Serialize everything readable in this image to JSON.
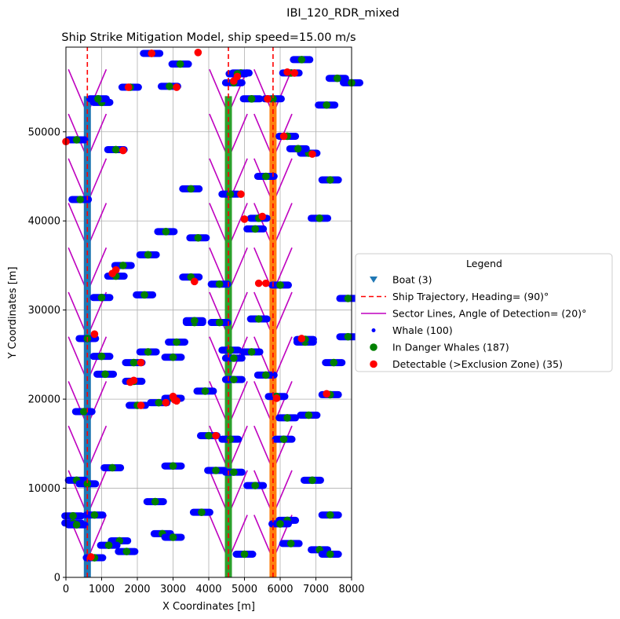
{
  "figure": {
    "suptitle": "IBI_120_RDR_mixed"
  },
  "chart_data": {
    "type": "scatter",
    "title": "Ship Strike Mitigation Model, ship speed=15.00 m/s",
    "xlabel": "X Coordinates [m]",
    "ylabel": "Y Coordinates [m]",
    "xlim": [
      0,
      8000
    ],
    "ylim": [
      0,
      59500
    ],
    "xticks": [
      "0",
      "1000",
      "2000",
      "3000",
      "4000",
      "5000",
      "6000",
      "7000",
      "8000"
    ],
    "xtick_values": [
      0,
      1000,
      2000,
      3000,
      4000,
      5000,
      6000,
      7000,
      8000
    ],
    "yticks": [
      "0",
      "10000",
      "20000",
      "30000",
      "40000",
      "50000"
    ],
    "ytick_values": [
      0,
      10000,
      20000,
      30000,
      40000,
      50000
    ],
    "grid": true,
    "legend": {
      "title": "Legend",
      "placement": "outside-right",
      "entries": [
        {
          "label": "Boat (3)",
          "marker": "triangle-down",
          "color": "#1f77b4"
        },
        {
          "label": "Ship Trajectory, Heading= (90)°",
          "marker": "dashed-line",
          "color": "#ff0000"
        },
        {
          "label": "Sector Lines, Angle of Detection= (20)°",
          "marker": "line",
          "color": "#bf00bf"
        },
        {
          "label": "Whale (100)",
          "marker": "small-dot",
          "color": "#0000ff"
        },
        {
          "label": "In Danger Whales (187)",
          "marker": "dot",
          "color": "#008000"
        },
        {
          "label": "Detectable (>Exclusion Zone) (35)",
          "marker": "dot",
          "color": "#ff0000"
        }
      ]
    },
    "ships": [
      {
        "x": 600,
        "y_start": 0,
        "y_end": 54000,
        "track_color": "#1f77b4"
      },
      {
        "x": 4550,
        "y_start": 0,
        "y_end": 54000,
        "track_color": "#2ca02c"
      },
      {
        "x": 5800,
        "y_start": 0,
        "y_end": 54000,
        "track_color": "#ff7f0e"
      }
    ],
    "trajectory": {
      "y_start": 0,
      "y_end": 59500,
      "color": "#ff0000"
    },
    "sector": {
      "y_values": [
        2000,
        7000,
        12000,
        17000,
        22000,
        27000,
        32000,
        37000,
        42000,
        47000,
        52000
      ],
      "half_width_x": 530,
      "arm_height": 5000,
      "color": "#bf00bf"
    },
    "whale_tracks": [
      [
        2400,
        58800
      ],
      [
        3200,
        57600
      ],
      [
        4900,
        56600
      ],
      [
        6600,
        58100
      ],
      [
        7600,
        56000
      ],
      [
        8000,
        55500
      ],
      [
        1800,
        55000
      ],
      [
        2900,
        55100
      ],
      [
        4700,
        55500
      ],
      [
        6300,
        56600
      ],
      [
        1000,
        53300
      ],
      [
        5200,
        53700
      ],
      [
        5800,
        53700
      ],
      [
        7300,
        53000
      ],
      [
        900,
        53700
      ],
      [
        300,
        49100
      ],
      [
        6200,
        49500
      ],
      [
        6800,
        47600
      ],
      [
        1400,
        48000
      ],
      [
        6500,
        48100
      ],
      [
        7400,
        44600
      ],
      [
        5600,
        45000
      ],
      [
        3500,
        43600
      ],
      [
        4600,
        43000
      ],
      [
        400,
        42400
      ],
      [
        5400,
        40300
      ],
      [
        7100,
        40300
      ],
      [
        5300,
        39100
      ],
      [
        2800,
        38800
      ],
      [
        3700,
        38100
      ],
      [
        2300,
        36200
      ],
      [
        1600,
        35000
      ],
      [
        1400,
        33800
      ],
      [
        3500,
        33700
      ],
      [
        6000,
        32800
      ],
      [
        4300,
        32900
      ],
      [
        1000,
        31400
      ],
      [
        2200,
        31700
      ],
      [
        7900,
        31300
      ],
      [
        5400,
        29000
      ],
      [
        3600,
        28600
      ],
      [
        4300,
        28600
      ],
      [
        600,
        26800
      ],
      [
        3100,
        26400
      ],
      [
        6700,
        26400
      ],
      [
        7900,
        27000
      ],
      [
        2300,
        25300
      ],
      [
        3000,
        24700
      ],
      [
        1000,
        24800
      ],
      [
        4600,
        25500
      ],
      [
        5200,
        25300
      ],
      [
        4700,
        24600
      ],
      [
        1900,
        24100
      ],
      [
        7500,
        24100
      ],
      [
        1100,
        22800
      ],
      [
        4700,
        22200
      ],
      [
        5600,
        22700
      ],
      [
        1900,
        22000
      ],
      [
        3000,
        20100
      ],
      [
        2600,
        19600
      ],
      [
        2000,
        19300
      ],
      [
        3900,
        20900
      ],
      [
        5900,
        20300
      ],
      [
        7400,
        20500
      ],
      [
        500,
        18600
      ],
      [
        6200,
        17900
      ],
      [
        6800,
        18200
      ],
      [
        4000,
        15900
      ],
      [
        4600,
        15500
      ],
      [
        6100,
        15500
      ],
      [
        4700,
        11800
      ],
      [
        5300,
        10300
      ],
      [
        6900,
        10900
      ],
      [
        1300,
        12300
      ],
      [
        3000,
        12500
      ],
      [
        300,
        10900
      ],
      [
        600,
        10500
      ],
      [
        2500,
        8500
      ],
      [
        200,
        6900
      ],
      [
        800,
        7000
      ],
      [
        200,
        6100
      ],
      [
        3800,
        7300
      ],
      [
        6200,
        6400
      ],
      [
        7400,
        7000
      ],
      [
        1500,
        4100
      ],
      [
        2700,
        4900
      ],
      [
        3000,
        4500
      ],
      [
        1200,
        3600
      ],
      [
        1700,
        2900
      ],
      [
        6300,
        3800
      ],
      [
        7100,
        3100
      ],
      [
        7400,
        2600
      ],
      [
        5000,
        2600
      ],
      [
        800,
        2200
      ],
      [
        300,
        5900
      ],
      [
        6000,
        6000
      ],
      [
        4800,
        56500
      ],
      [
        6700,
        26700
      ],
      [
        3600,
        28800
      ],
      [
        4200,
        12000
      ]
    ],
    "detectable_whales": [
      [
        1750,
        55000
      ],
      [
        3100,
        55000
      ],
      [
        4800,
        56200
      ],
      [
        4700,
        55700
      ],
      [
        6400,
        56600
      ],
      [
        5650,
        53700
      ],
      [
        6100,
        49500
      ],
      [
        6900,
        47500
      ],
      [
        1600,
        47900
      ],
      [
        0,
        48900
      ],
      [
        4900,
        43000
      ],
      [
        5500,
        40500
      ],
      [
        1400,
        34500
      ],
      [
        3600,
        33200
      ],
      [
        5400,
        33000
      ],
      [
        800,
        27300
      ],
      [
        2100,
        24100
      ],
      [
        1900,
        22100
      ],
      [
        3000,
        20300
      ],
      [
        3100,
        19800
      ],
      [
        2800,
        19600
      ],
      [
        2100,
        19300
      ],
      [
        7300,
        20600
      ],
      [
        6600,
        26800
      ],
      [
        5900,
        20100
      ],
      [
        4200,
        15900
      ],
      [
        2400,
        58800
      ],
      [
        3700,
        58900
      ],
      [
        6200,
        56700
      ],
      [
        700,
        2300
      ],
      [
        1300,
        34100
      ],
      [
        1800,
        21900
      ],
      [
        5000,
        40200
      ],
      [
        3050,
        19900
      ],
      [
        5600,
        33000
      ]
    ]
  }
}
